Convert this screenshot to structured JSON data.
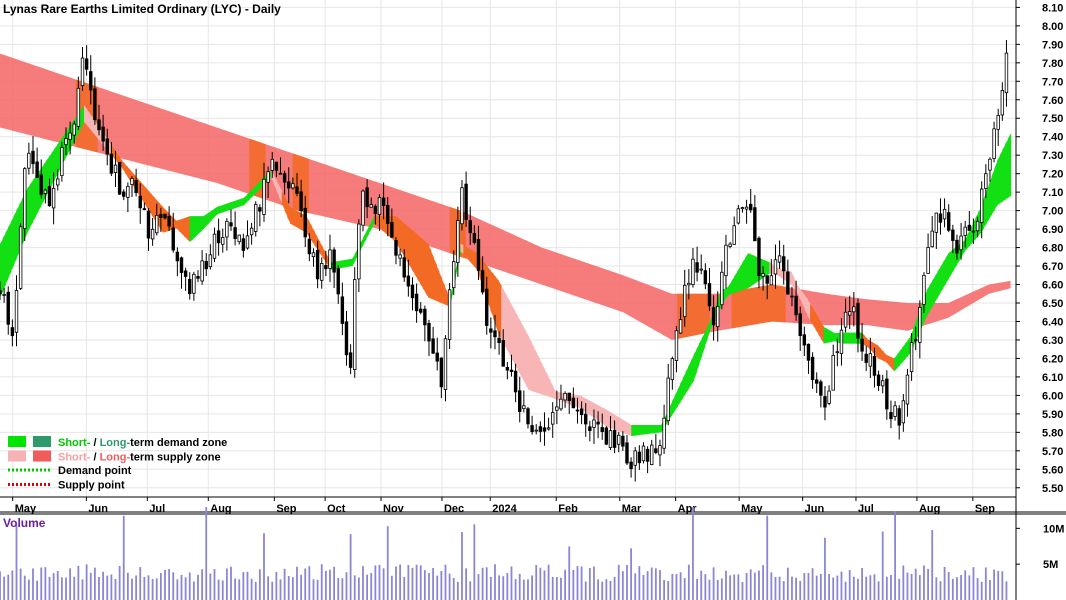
{
  "chart_data": {
    "type": "candlestick",
    "title": "Lynas Rare Earths Limited Ordinary (LYC) - Daily",
    "y_ticks": [
      "8.10",
      "8.00",
      "7.90",
      "7.80",
      "7.70",
      "7.60",
      "7.50",
      "7.40",
      "7.30",
      "7.20",
      "7.10",
      "7.00",
      "6.90",
      "6.80",
      "6.70",
      "6.60",
      "6.50",
      "6.40",
      "6.30",
      "6.20",
      "6.10",
      "6.00",
      "5.90",
      "5.80",
      "5.70",
      "5.60",
      "5.50"
    ],
    "ylim": [
      5.45,
      8.14
    ],
    "x_ticks": [
      "May",
      "Jun",
      "Jul",
      "Aug",
      "Sep",
      "Oct",
      "Nov",
      "Dec",
      "2024",
      "Feb",
      "Mar",
      "Apr",
      "May",
      "Jun",
      "Jul",
      "Aug",
      "Sep"
    ],
    "bars": 245,
    "grid": true,
    "legend_position": "bottom-left",
    "legend": [
      {
        "label_a": "Short-",
        "sep": " / ",
        "label_b": "Long-",
        "rest": "term demand zone",
        "color_a": "#00e400",
        "color_b": "#2e9a6a",
        "text_color_a": "#00c800",
        "text_color_b": "#2e9a6a"
      },
      {
        "label_a": "Short-",
        "sep": " / ",
        "label_b": "Long-",
        "rest": "term supply zone",
        "color_a": "#f6b3b3",
        "color_b": "#f25b5b",
        "text_color_a": "#f6a0a0",
        "text_color_b": "#f25b5b"
      },
      {
        "label": "Demand point",
        "color": "#00c800",
        "style": "dotted"
      },
      {
        "label": "Supply point",
        "color": "#e00000",
        "style": "dotted"
      }
    ],
    "price_anchors": [
      [
        0,
        6.55
      ],
      [
        5,
        6.35
      ],
      [
        10,
        7.35
      ],
      [
        15,
        7.15
      ],
      [
        18,
        7.0
      ],
      [
        22,
        7.25
      ],
      [
        27,
        7.45
      ],
      [
        31,
        7.85
      ],
      [
        35,
        7.55
      ],
      [
        40,
        7.3
      ],
      [
        45,
        7.1
      ],
      [
        50,
        7.15
      ],
      [
        55,
        6.9
      ],
      [
        60,
        7.0
      ],
      [
        65,
        6.75
      ],
      [
        70,
        6.55
      ],
      [
        75,
        6.7
      ],
      [
        80,
        6.85
      ],
      [
        85,
        6.95
      ],
      [
        90,
        6.8
      ],
      [
        95,
        7.0
      ],
      [
        100,
        7.3
      ],
      [
        105,
        7.2
      ],
      [
        110,
        7.05
      ],
      [
        113,
        6.9
      ],
      [
        117,
        6.65
      ],
      [
        122,
        6.75
      ],
      [
        126,
        6.4
      ],
      [
        129,
        6.1
      ],
      [
        133,
        7.1
      ],
      [
        137,
        7.0
      ],
      [
        141,
        7.05
      ],
      [
        146,
        6.8
      ],
      [
        152,
        6.5
      ],
      [
        158,
        6.3
      ],
      [
        163,
        6.1
      ],
      [
        170,
        7.1
      ],
      [
        174,
        6.9
      ],
      [
        180,
        6.4
      ],
      [
        186,
        6.2
      ],
      [
        193,
        5.9
      ],
      [
        200,
        5.75
      ],
      [
        207,
        6.0
      ],
      [
        213,
        5.95
      ],
      [
        220,
        5.8
      ],
      [
        227,
        5.75
      ],
      [
        233,
        5.65
      ],
      [
        239,
        5.7
      ],
      [
        244,
        5.75
      ],
      [
        248,
        6.2
      ],
      [
        252,
        6.5
      ],
      [
        256,
        6.7
      ],
      [
        260,
        6.65
      ],
      [
        264,
        6.4
      ],
      [
        268,
        6.8
      ],
      [
        272,
        6.95
      ],
      [
        276,
        7.05
      ],
      [
        280,
        6.7
      ],
      [
        284,
        6.65
      ],
      [
        288,
        6.7
      ],
      [
        292,
        6.55
      ],
      [
        296,
        6.3
      ],
      [
        300,
        6.05
      ],
      [
        304,
        5.95
      ],
      [
        308,
        6.2
      ],
      [
        312,
        6.5
      ],
      [
        316,
        6.4
      ],
      [
        320,
        6.2
      ],
      [
        324,
        6.1
      ],
      [
        328,
        5.95
      ],
      [
        332,
        5.85
      ],
      [
        336,
        6.2
      ],
      [
        340,
        6.5
      ],
      [
        344,
        6.9
      ],
      [
        348,
        7.0
      ],
      [
        352,
        6.8
      ],
      [
        356,
        6.85
      ],
      [
        360,
        6.95
      ],
      [
        364,
        7.2
      ],
      [
        368,
        7.5
      ],
      [
        371,
        7.8
      ],
      [
        373,
        7.9
      ]
    ],
    "short_band": [
      [
        0,
        6.55,
        6.8
      ],
      [
        10,
        6.9,
        7.1
      ],
      [
        31,
        7.5,
        7.55
      ],
      [
        45,
        7.25,
        7.25
      ],
      [
        60,
        6.9,
        7.0
      ],
      [
        70,
        6.95,
        6.85
      ],
      [
        75,
        6.95,
        6.92
      ],
      [
        80,
        7.0,
        7.0
      ],
      [
        90,
        7.05,
        7.05
      ],
      [
        100,
        7.2,
        7.2
      ],
      [
        107,
        7.0,
        6.95
      ],
      [
        113,
        6.95,
        6.9
      ],
      [
        122,
        6.7,
        6.7
      ],
      [
        130,
        6.72,
        6.72
      ],
      [
        138,
        6.95,
        6.95
      ],
      [
        146,
        6.95,
        6.85
      ],
      [
        158,
        6.8,
        6.55
      ],
      [
        166,
        6.5,
        6.5
      ],
      [
        170,
        6.8,
        6.8
      ],
      [
        176,
        6.75,
        6.7
      ],
      [
        184,
        6.6,
        6.35
      ],
      [
        195,
        6.3,
        6.05
      ],
      [
        205,
        6.0,
        6.0
      ],
      [
        214,
        5.98,
        5.95
      ],
      [
        224,
        5.9,
        5.85
      ],
      [
        233,
        5.82,
        5.8
      ],
      [
        244,
        5.82,
        5.82
      ],
      [
        256,
        6.2,
        6.1
      ],
      [
        266,
        6.5,
        6.55
      ],
      [
        276,
        6.75,
        6.6
      ],
      [
        284,
        6.7,
        6.68
      ],
      [
        292,
        6.62,
        6.65
      ],
      [
        298,
        6.5,
        6.45
      ],
      [
        304,
        6.35,
        6.3
      ],
      [
        310,
        6.3,
        6.32
      ],
      [
        318,
        6.3,
        6.32
      ],
      [
        324,
        6.25,
        6.22
      ],
      [
        330,
        6.15,
        6.18
      ],
      [
        336,
        6.25,
        6.3
      ],
      [
        342,
        6.45,
        6.55
      ],
      [
        350,
        6.65,
        6.75
      ],
      [
        356,
        6.8,
        6.82
      ],
      [
        362,
        6.9,
        7.0
      ],
      [
        368,
        7.05,
        7.25
      ],
      [
        373,
        7.1,
        7.4
      ]
    ],
    "long_band": [
      [
        0,
        7.45,
        7.85
      ],
      [
        40,
        7.3,
        7.65
      ],
      [
        80,
        7.15,
        7.45
      ],
      [
        110,
        7.0,
        7.3
      ],
      [
        140,
        6.9,
        7.15
      ],
      [
        170,
        6.75,
        7.0
      ],
      [
        200,
        6.6,
        6.8
      ],
      [
        230,
        6.45,
        6.65
      ],
      [
        248,
        6.3,
        6.55
      ],
      [
        265,
        6.35,
        6.55
      ],
      [
        285,
        6.4,
        6.6
      ],
      [
        305,
        6.38,
        6.55
      ],
      [
        320,
        6.38,
        6.52
      ],
      [
        335,
        6.35,
        6.5
      ],
      [
        350,
        6.42,
        6.5
      ],
      [
        365,
        6.55,
        6.6
      ],
      [
        373,
        6.58,
        6.62
      ]
    ],
    "volume": {
      "label": "Volume",
      "label_color": "#6a1fa0",
      "ticks": [
        "10M",
        "5M"
      ],
      "ylim": [
        0,
        12000000
      ]
    }
  }
}
